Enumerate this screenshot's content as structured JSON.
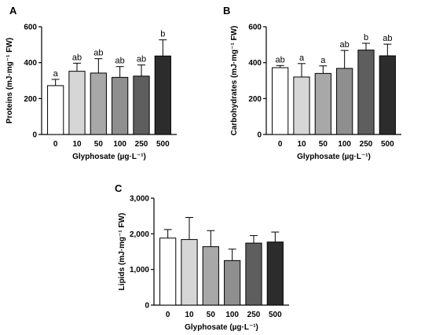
{
  "chart_data": [
    {
      "panel": "A",
      "type": "bar",
      "categories": [
        "0",
        "10",
        "50",
        "100",
        "250",
        "500"
      ],
      "values": [
        272,
        352,
        342,
        318,
        325,
        437
      ],
      "errors": [
        35,
        45,
        80,
        60,
        62,
        90
      ],
      "significance": [
        "a",
        "ab",
        "ab",
        "ab",
        "ab",
        "b"
      ],
      "bar_colors": [
        "#ffffff",
        "#d6d6d6",
        "#a8a8a8",
        "#8f8f8f",
        "#5e5e5e",
        "#2c2c2c"
      ],
      "xlabel": "Glyphosate (µg·L⁻¹)",
      "ylabel": "Proteins (mJ·mg⁻¹ FW)",
      "ylim": [
        0,
        600
      ],
      "yticks": [
        "0",
        "200",
        "400",
        "600"
      ],
      "grid": false
    },
    {
      "panel": "B",
      "type": "bar",
      "categories": [
        "0",
        "10",
        "50",
        "100",
        "250",
        "500"
      ],
      "values": [
        372,
        320,
        340,
        368,
        470,
        438
      ],
      "errors": [
        12,
        75,
        42,
        100,
        38,
        65
      ],
      "significance": [
        "ab",
        "a",
        "a",
        "ab",
        "b",
        "ab"
      ],
      "bar_colors": [
        "#ffffff",
        "#d6d6d6",
        "#a8a8a8",
        "#8f8f8f",
        "#5e5e5e",
        "#2c2c2c"
      ],
      "xlabel": "Glyphosate (µg·L⁻¹)",
      "ylabel": "Carbohydrates (mJ·mg⁻¹ FW)",
      "ylim": [
        0,
        600
      ],
      "yticks": [
        "0",
        "200",
        "400",
        "600"
      ],
      "grid": false
    },
    {
      "panel": "C",
      "type": "bar",
      "categories": [
        "0",
        "10",
        "50",
        "100",
        "250",
        "500"
      ],
      "values": [
        1880,
        1840,
        1640,
        1250,
        1740,
        1770
      ],
      "errors": [
        240,
        620,
        450,
        320,
        210,
        280
      ],
      "significance": [
        "",
        "",
        "",
        "",
        "",
        ""
      ],
      "bar_colors": [
        "#ffffff",
        "#d6d6d6",
        "#a8a8a8",
        "#8f8f8f",
        "#5e5e5e",
        "#2c2c2c"
      ],
      "xlabel": "Glyphosate (µg·L⁻¹)",
      "ylabel": "Lipids (mJ·mg⁻¹ FW)",
      "ylim": [
        0,
        3000
      ],
      "yticks": [
        "0",
        "1,000",
        "2,000",
        "3,000"
      ],
      "grid": false
    }
  ]
}
